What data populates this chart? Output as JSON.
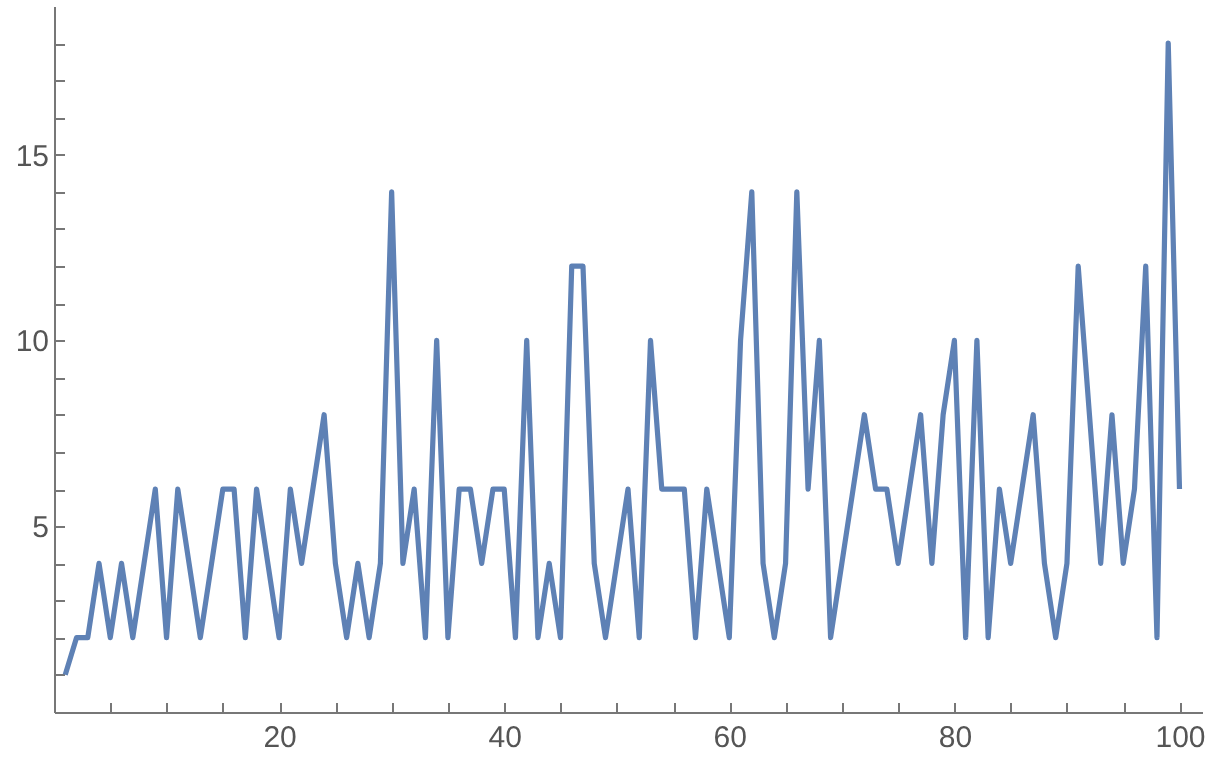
{
  "chart_data": {
    "type": "line",
    "color": "#5e81b5",
    "marker": "none",
    "line_style": "solid",
    "grid": false,
    "x": [
      1,
      2,
      3,
      4,
      5,
      6,
      7,
      8,
      9,
      10,
      11,
      12,
      13,
      14,
      15,
      16,
      17,
      18,
      19,
      20,
      21,
      22,
      23,
      24,
      25,
      26,
      27,
      28,
      29,
      30,
      31,
      32,
      33,
      34,
      35,
      36,
      37,
      38,
      39,
      40,
      41,
      42,
      43,
      44,
      45,
      46,
      47,
      48,
      49,
      50,
      51,
      52,
      53,
      54,
      55,
      56,
      57,
      58,
      59,
      60,
      61,
      62,
      63,
      64,
      65,
      66,
      67,
      68,
      69,
      70,
      71,
      72,
      73,
      74,
      75,
      76,
      77,
      78,
      79,
      80,
      81,
      82,
      83,
      84,
      85,
      86,
      87,
      88,
      89,
      90,
      91,
      92,
      93,
      94,
      95,
      96,
      97,
      98,
      99,
      100
    ],
    "values": [
      1,
      2,
      2,
      4,
      2,
      4,
      2,
      4,
      6,
      2,
      6,
      4,
      2,
      4,
      6,
      6,
      2,
      6,
      4,
      2,
      6,
      4,
      6,
      8,
      4,
      2,
      4,
      2,
      4,
      14,
      4,
      6,
      2,
      10,
      2,
      6,
      6,
      4,
      6,
      6,
      2,
      10,
      2,
      4,
      2,
      12,
      12,
      4,
      2,
      4,
      6,
      2,
      10,
      6,
      6,
      6,
      2,
      6,
      4,
      2,
      10,
      14,
      4,
      2,
      4,
      14,
      6,
      10,
      2,
      4,
      6,
      8,
      6,
      6,
      4,
      6,
      8,
      4,
      8,
      10,
      2,
      10,
      2,
      6,
      4,
      6,
      8,
      4,
      2,
      4,
      12,
      8,
      4,
      8,
      4,
      6,
      12,
      2,
      18,
      6
    ],
    "xlim": [
      0,
      102
    ],
    "ylim": [
      0,
      19
    ],
    "xticks": [
      {
        "value": 5,
        "label": null
      },
      {
        "value": 10,
        "label": null
      },
      {
        "value": 15,
        "label": null
      },
      20,
      {
        "value": 25,
        "label": null
      },
      {
        "value": 30,
        "label": null
      },
      {
        "value": 35,
        "label": null
      },
      40,
      {
        "value": 45,
        "label": null
      },
      {
        "value": 50,
        "label": null
      },
      {
        "value": 55,
        "label": null
      },
      60,
      {
        "value": 65,
        "label": null
      },
      {
        "value": 70,
        "label": null
      },
      {
        "value": 75,
        "label": null
      },
      80,
      {
        "value": 85,
        "label": null
      },
      {
        "value": 90,
        "label": null
      },
      {
        "value": 95,
        "label": null
      },
      100
    ],
    "yticks": [
      {
        "value": 1,
        "label": null
      },
      {
        "value": 2,
        "label": null
      },
      {
        "value": 3,
        "label": null
      },
      {
        "value": 4,
        "label": null
      },
      5,
      {
        "value": 6,
        "label": null
      },
      {
        "value": 7,
        "label": null
      },
      {
        "value": 8,
        "label": null
      },
      {
        "value": 9,
        "label": null
      },
      10,
      {
        "value": 11,
        "label": null
      },
      {
        "value": 12,
        "label": null
      },
      {
        "value": 13,
        "label": null
      },
      {
        "value": 14,
        "label": null
      },
      15,
      {
        "value": 16,
        "label": null
      },
      {
        "value": 17,
        "label": null
      },
      {
        "value": 18,
        "label": null
      }
    ]
  }
}
